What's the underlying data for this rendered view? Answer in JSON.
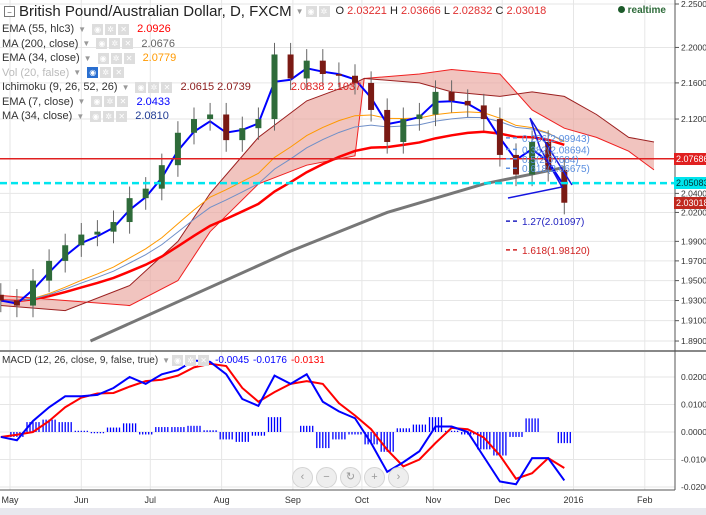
{
  "header": {
    "title": "British Pound/Australian Dollar, D, FXCM",
    "ohlc": {
      "o_label": "O",
      "o": "2.03221",
      "h_label": "H",
      "h": "2.03666",
      "l_label": "L",
      "l": "2.02832",
      "c_label": "C",
      "c": "2.03018"
    },
    "realtime": "realtime"
  },
  "legend": [
    {
      "label": "EMA (55, hlc3)",
      "value": "2.0926",
      "color": "#ff0000"
    },
    {
      "label": "MA (200, close)",
      "value": "2.0676",
      "color": "#666666"
    },
    {
      "label": "EMA (34, close)",
      "value": "2.0779",
      "color": "#ff9900"
    },
    {
      "label": "Vol (20, false)",
      "value": "",
      "color": "#bbbbbb"
    },
    {
      "label": "Ichimoku (9, 26, 52, 26)",
      "value": "2.0615  2.0739",
      "value2": "2.0838  2.1037",
      "color": "#8b1a1a"
    },
    {
      "label": "EMA (7, close)",
      "value": "2.0433",
      "color": "#0000ff"
    },
    {
      "label": "MA (34, close)",
      "value": "2.0810",
      "color": "#1f3a93"
    }
  ],
  "macd_legend": {
    "label": "MACD (12, 26, close, 9, false, true)",
    "v1": "-0.0045",
    "v2": "-0.0176",
    "v3": "-0.0131"
  },
  "badges": [
    {
      "value": "2.07686",
      "price": 2.07686,
      "color": "#e02020"
    },
    {
      "value": "2.05083",
      "price": 2.05083,
      "color": "#00e5ee"
    },
    {
      "value": "2.03018",
      "price": 2.03018,
      "color": "#c0281e"
    }
  ],
  "zoom_controls": [
    "‹",
    "−",
    "↻",
    "+",
    "›"
  ],
  "chart_data": [
    {
      "type": "candlestick",
      "scale": "log",
      "y_ticks": [
        "2.25000",
        "2.20000",
        "2.16000",
        "2.12000",
        "2.04000",
        "2.02000",
        "1.99000",
        "1.97000",
        "1.95000",
        "1.93000",
        "1.91000",
        "1.89000"
      ],
      "x_ticks": [
        {
          "label": "May",
          "date": "2015-05-01"
        },
        {
          "label": "Jun",
          "date": "2015-06-01"
        },
        {
          "label": "Jul",
          "date": "2015-07-01"
        },
        {
          "label": "Aug",
          "date": "2015-08-01"
        },
        {
          "label": "Sep",
          "date": "2015-09-01"
        },
        {
          "label": "Oct",
          "date": "2015-10-01"
        },
        {
          "label": "Nov",
          "date": "2015-11-01"
        },
        {
          "label": "Dec",
          "date": "2015-12-01"
        },
        {
          "label": "2016",
          "date": "2016-01-01"
        },
        {
          "label": "Feb",
          "date": "2016-02-01"
        }
      ],
      "dates": [
        "2015-04-27",
        "2015-05-04",
        "2015-05-11",
        "2015-05-18",
        "2015-05-25",
        "2015-06-01",
        "2015-06-08",
        "2015-06-15",
        "2015-06-22",
        "2015-06-29",
        "2015-07-06",
        "2015-07-13",
        "2015-07-20",
        "2015-07-27",
        "2015-08-03",
        "2015-08-10",
        "2015-08-17",
        "2015-08-24",
        "2015-08-31",
        "2015-09-07",
        "2015-09-14",
        "2015-09-21",
        "2015-09-28",
        "2015-10-05",
        "2015-10-12",
        "2015-10-19",
        "2015-10-26",
        "2015-11-02",
        "2015-11-09",
        "2015-11-16",
        "2015-11-23",
        "2015-11-30",
        "2015-12-07",
        "2015-12-14",
        "2015-12-21",
        "2015-12-28"
      ],
      "close": [
        1.93,
        1.925,
        1.95,
        1.97,
        1.986,
        1.997,
        2.0,
        2.01,
        2.035,
        2.045,
        2.07,
        2.105,
        2.12,
        2.125,
        2.097,
        2.11,
        2.12,
        2.192,
        2.165,
        2.185,
        2.17,
        2.168,
        2.16,
        2.13,
        2.095,
        2.12,
        2.125,
        2.15,
        2.14,
        2.135,
        2.12,
        2.081,
        2.06,
        2.095,
        2.065,
        2.03018
      ],
      "ma200": {
        "dates": [
          "2015-06-05",
          "2015-08-31",
          "2015-10-12",
          "2015-11-23",
          "2015-12-28"
        ],
        "values": [
          1.89,
          1.98,
          2.02,
          2.05,
          2.0676
        ]
      },
      "ichimoku_cloud": {
        "dates": [
          "2015-04-27",
          "2015-05-25",
          "2015-06-22",
          "2015-07-13",
          "2015-07-27",
          "2015-08-17",
          "2015-09-07",
          "2015-09-28",
          "2015-10-02",
          "2015-10-26",
          "2015-11-09",
          "2015-11-30",
          "2015-12-14",
          "2015-12-28",
          "2016-01-11",
          "2016-01-25",
          "2016-02-05"
        ],
        "span_a": [
          1.935,
          1.93,
          1.925,
          1.95,
          2.0,
          2.05,
          2.07,
          2.08,
          2.165,
          2.17,
          2.175,
          2.17,
          2.13,
          2.11,
          2.1,
          2.085,
          2.065
        ],
        "span_b": [
          1.925,
          1.92,
          1.945,
          1.99,
          2.04,
          2.1,
          2.14,
          2.16,
          2.165,
          2.16,
          2.15,
          2.145,
          2.15,
          2.145,
          2.125,
          2.1,
          2.095
        ]
      },
      "hlines": [
        {
          "price": 2.07686,
          "style": "solid",
          "color": "#e02020"
        },
        {
          "price": 2.05083,
          "style": "dashed",
          "color": "#00e5ee"
        }
      ],
      "fib": [
        {
          "label": "0.236(2.09943)",
          "price": 2.09943,
          "color": "#5b8fe0"
        },
        {
          "label": "0.382(2.08694)",
          "price": 2.08694,
          "color": "#5b8fe0"
        },
        {
          "label": "0.5(2.07684)",
          "price": 2.07684,
          "color": "#5b8fe0"
        },
        {
          "label": "0.618(2.06675)",
          "price": 2.06675,
          "color": "#5b8fe0"
        },
        {
          "label": "1.27(2.01097)",
          "price": 2.01097,
          "color": "#2020c0"
        },
        {
          "label": "1.618(1.98120)",
          "price": 1.9812,
          "color": "#d02020"
        }
      ]
    },
    {
      "type": "line",
      "title": "MACD (12, 26, close, 9, false, true)",
      "y_ticks": [
        "0.0200",
        "0.0100",
        "0.0000",
        "-0.0100",
        "-0.0200"
      ],
      "macd": [
        -0.0018,
        -0.003,
        0.004,
        0.009,
        0.013,
        0.013,
        0.0135,
        0.016,
        0.02,
        0.0175,
        0.021,
        0.0225,
        0.026,
        0.0255,
        0.021,
        0.012,
        0.0095,
        0.0205,
        0.0175,
        0.021,
        0.011,
        0.0075,
        0.005,
        -0.004,
        -0.0145,
        -0.011,
        -0.007,
        0.002,
        0.002,
        0.0,
        -0.009,
        -0.018,
        -0.019,
        -0.0095,
        -0.0095,
        -0.0176
      ],
      "signal": [
        -0.0018,
        -0.001,
        0.0,
        0.004,
        0.009,
        0.0125,
        0.014,
        0.0142,
        0.0165,
        0.0185,
        0.019,
        0.0205,
        0.0235,
        0.0248,
        0.024,
        0.016,
        0.011,
        0.0145,
        0.0175,
        0.0185,
        0.0175,
        0.0105,
        0.006,
        0.001,
        -0.0065,
        -0.0125,
        -0.01,
        -0.004,
        0.0015,
        0.001,
        -0.002,
        -0.0085,
        -0.017,
        -0.015,
        -0.0095,
        -0.0131
      ],
      "colors": {
        "macd": "#0000ff",
        "signal": "#ff0000",
        "histogram": "#0000ff"
      }
    }
  ]
}
